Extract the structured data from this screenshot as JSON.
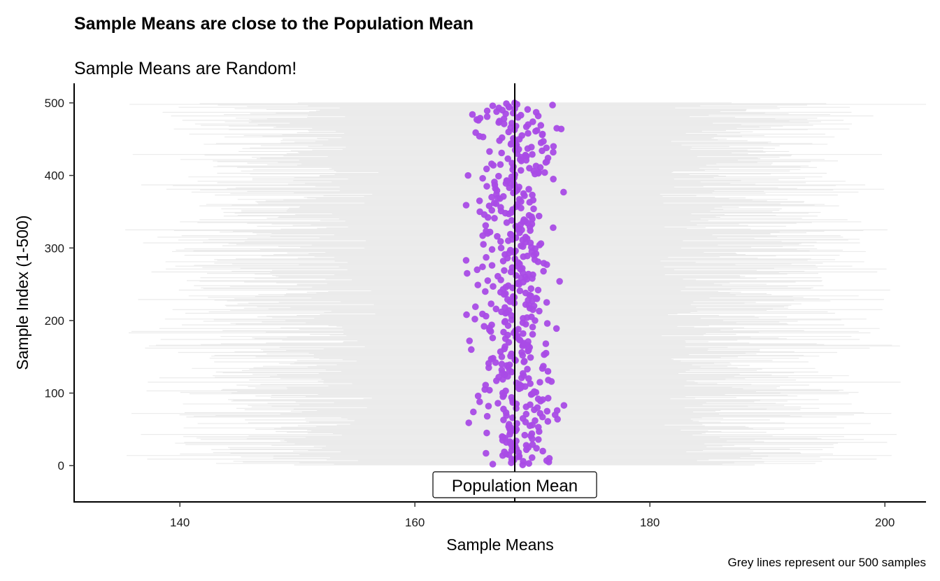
{
  "chart_data": {
    "type": "scatter",
    "title": "Sample Means are close to the Population Mean",
    "subtitle": "Sample Means are Random!",
    "xlabel": "Sample Means",
    "ylabel": "Sample Index (1-500)",
    "caption": "Grey lines represent our 500 samples",
    "xlim": [
      131,
      203.5
    ],
    "ylim": [
      -50,
      527
    ],
    "x_ticks": [
      {
        "value": 140,
        "label": "140"
      },
      {
        "value": 160,
        "label": "160"
      },
      {
        "value": 180,
        "label": "180"
      },
      {
        "value": 200,
        "label": "200"
      }
    ],
    "y_ticks": [
      {
        "value": 0,
        "label": "0"
      },
      {
        "value": 100,
        "label": "100"
      },
      {
        "value": 200,
        "label": "200"
      },
      {
        "value": 300,
        "label": "300"
      },
      {
        "value": 400,
        "label": "400"
      },
      {
        "value": 500,
        "label": "500"
      }
    ],
    "grid": false,
    "legend": "none",
    "point_color": "#A94BE6",
    "line_color": "#EBEBEB",
    "reference_line": {
      "x": 168.5,
      "label": "Population Mean",
      "color": "#000000"
    },
    "series": [
      {
        "name": "Sample Means",
        "note_samples": 500,
        "points_stats": {
          "center": 168.5,
          "spread": 1.7,
          "min_index": 1,
          "max_index": 500
        }
      },
      {
        "name": "Samples",
        "range_stats": {
          "center": 168.5,
          "half_width_min": 13,
          "half_width_max": 34
        }
      }
    ]
  }
}
